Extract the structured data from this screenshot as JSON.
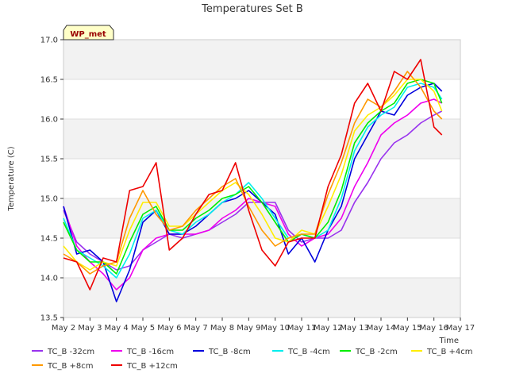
{
  "chart_data": {
    "type": "line",
    "title": "Temperatures Set B",
    "xlabel": "Time",
    "ylabel": "Temperature (C)",
    "xlim": [
      2,
      17
    ],
    "ylim": [
      13.5,
      17.0
    ],
    "x_ticks": [
      {
        "v": 2,
        "label": "May 2"
      },
      {
        "v": 3,
        "label": "May 3"
      },
      {
        "v": 4,
        "label": "May 4"
      },
      {
        "v": 5,
        "label": "May 5"
      },
      {
        "v": 6,
        "label": "May 6"
      },
      {
        "v": 7,
        "label": "May 7"
      },
      {
        "v": 8,
        "label": "May 8"
      },
      {
        "v": 9,
        "label": "May 9"
      },
      {
        "v": 10,
        "label": "May 10"
      },
      {
        "v": 11,
        "label": "May 11"
      },
      {
        "v": 12,
        "label": "May 12"
      },
      {
        "v": 13,
        "label": "May 13"
      },
      {
        "v": 14,
        "label": "May 14"
      },
      {
        "v": 15,
        "label": "May 15"
      },
      {
        "v": 16,
        "label": "May 16"
      },
      {
        "v": 17,
        "label": "May 17"
      }
    ],
    "y_ticks": [
      {
        "v": 13.5,
        "label": "13.5"
      },
      {
        "v": 14.0,
        "label": "14.0"
      },
      {
        "v": 14.5,
        "label": "14.5"
      },
      {
        "v": 15.0,
        "label": "15.0"
      },
      {
        "v": 15.5,
        "label": "15.5"
      },
      {
        "v": 16.0,
        "label": "16.0"
      },
      {
        "v": 16.5,
        "label": "16.5"
      },
      {
        "v": 17.0,
        "label": "17.0"
      }
    ],
    "bands": [
      [
        13.5,
        14.0
      ],
      [
        14.5,
        15.0
      ],
      [
        15.5,
        16.0
      ],
      [
        16.5,
        17.0
      ]
    ],
    "annotation": "WP_met",
    "legend_position": "bottom",
    "x": [
      2.0,
      2.5,
      3.0,
      3.5,
      4.0,
      4.5,
      5.0,
      5.5,
      6.0,
      6.5,
      7.0,
      7.5,
      8.0,
      8.5,
      9.0,
      9.5,
      10.0,
      10.5,
      11.0,
      11.5,
      12.0,
      12.5,
      13.0,
      13.5,
      14.0,
      14.5,
      15.0,
      15.5,
      16.0,
      16.3
    ],
    "series": [
      {
        "name": "TC_B -32cm",
        "color": "#9933ee",
        "values": [
          14.85,
          14.45,
          14.3,
          14.2,
          14.1,
          14.15,
          14.35,
          14.45,
          14.55,
          14.5,
          14.55,
          14.6,
          14.7,
          14.8,
          14.95,
          14.95,
          14.95,
          14.6,
          14.45,
          14.5,
          14.5,
          14.6,
          14.95,
          15.2,
          15.5,
          15.7,
          15.8,
          15.95,
          16.05,
          16.1
        ]
      },
      {
        "name": "TC_B -16cm",
        "color": "#ee00ee",
        "values": [
          14.9,
          14.4,
          14.2,
          14.05,
          13.85,
          14.0,
          14.35,
          14.5,
          14.55,
          14.55,
          14.55,
          14.6,
          14.75,
          14.85,
          15.0,
          14.95,
          14.9,
          14.55,
          14.4,
          14.5,
          14.55,
          14.75,
          15.15,
          15.45,
          15.8,
          15.95,
          16.05,
          16.2,
          16.25,
          16.2
        ]
      },
      {
        "name": "TC_B -8cm",
        "color": "#0000dd",
        "values": [
          14.9,
          14.3,
          14.35,
          14.2,
          13.7,
          14.1,
          14.7,
          14.85,
          14.55,
          14.55,
          14.65,
          14.8,
          14.95,
          15.0,
          15.1,
          14.95,
          14.8,
          14.3,
          14.5,
          14.2,
          14.6,
          14.9,
          15.5,
          15.8,
          16.1,
          16.05,
          16.3,
          16.4,
          16.45,
          16.35
        ]
      },
      {
        "name": "TC_B -4cm",
        "color": "#00eeee",
        "values": [
          14.75,
          14.35,
          14.25,
          14.15,
          14.0,
          14.3,
          14.75,
          14.85,
          14.6,
          14.55,
          14.7,
          14.8,
          14.95,
          15.05,
          15.2,
          15.0,
          14.75,
          14.5,
          14.55,
          14.5,
          14.6,
          15.0,
          15.6,
          15.9,
          16.05,
          16.15,
          16.4,
          16.45,
          16.4,
          16.25
        ]
      },
      {
        "name": "TC_B -2cm",
        "color": "#00ee00",
        "values": [
          14.7,
          14.35,
          14.2,
          14.2,
          14.05,
          14.45,
          14.8,
          14.9,
          14.6,
          14.6,
          14.75,
          14.85,
          15.0,
          15.05,
          15.15,
          14.95,
          14.7,
          14.45,
          14.55,
          14.5,
          14.7,
          15.1,
          15.7,
          15.95,
          16.1,
          16.2,
          16.45,
          16.5,
          16.45,
          16.2
        ]
      },
      {
        "name": "TC_B +4cm",
        "color": "#ffee00",
        "values": [
          14.4,
          14.2,
          14.1,
          14.2,
          14.15,
          14.6,
          14.95,
          14.95,
          14.65,
          14.65,
          14.8,
          14.95,
          15.1,
          15.2,
          15.05,
          14.8,
          14.5,
          14.45,
          14.6,
          14.55,
          14.9,
          15.3,
          15.85,
          16.05,
          16.15,
          16.3,
          16.5,
          16.5,
          16.35,
          16.1
        ]
      },
      {
        "name": "TC_B +8cm",
        "color": "#ff9900",
        "values": [
          14.3,
          14.2,
          14.05,
          14.15,
          14.2,
          14.75,
          15.1,
          14.8,
          14.6,
          14.65,
          14.85,
          15.0,
          15.15,
          15.25,
          14.9,
          14.6,
          14.4,
          14.5,
          14.55,
          14.55,
          15.05,
          15.45,
          15.95,
          16.25,
          16.15,
          16.35,
          16.6,
          16.4,
          16.1,
          16.0
        ]
      },
      {
        "name": "TC_B +12cm",
        "color": "#ee0000",
        "values": [
          14.25,
          14.2,
          13.85,
          14.25,
          14.2,
          15.1,
          15.15,
          15.45,
          14.35,
          14.5,
          14.8,
          15.05,
          15.1,
          15.45,
          14.85,
          14.35,
          14.15,
          14.45,
          14.5,
          14.5,
          15.15,
          15.55,
          16.2,
          16.45,
          16.1,
          16.6,
          16.5,
          16.75,
          15.9,
          15.8
        ]
      }
    ]
  }
}
